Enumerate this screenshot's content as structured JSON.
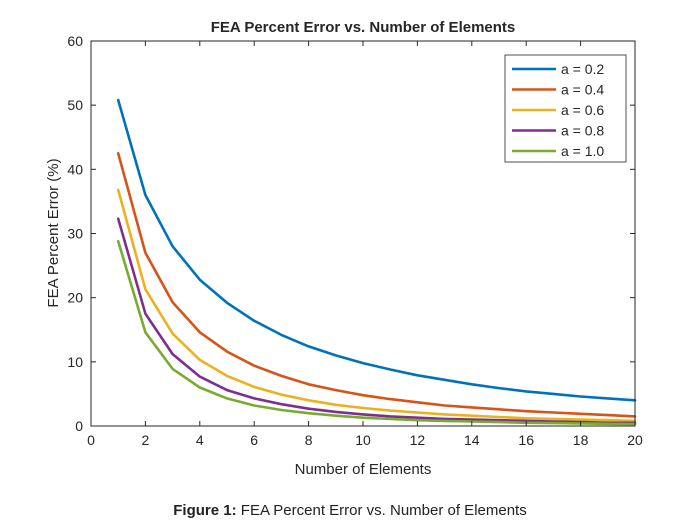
{
  "chart_data": {
    "type": "line",
    "title": "FEA Percent Error vs. Number of Elements",
    "xlabel": "Number of Elements",
    "ylabel": "FEA Percent Error (%)",
    "xlim": [
      0,
      20
    ],
    "ylim": [
      0,
      60
    ],
    "xticks": [
      0,
      2,
      4,
      6,
      8,
      10,
      12,
      14,
      16,
      18,
      20
    ],
    "yticks": [
      0,
      10,
      20,
      30,
      40,
      50,
      60
    ],
    "grid": false,
    "legend_position": "top-right",
    "x": [
      1,
      2,
      3,
      4,
      5,
      6,
      7,
      8,
      9,
      10,
      11,
      12,
      13,
      14,
      15,
      16,
      17,
      18,
      19,
      20
    ],
    "series": [
      {
        "name": "a = 0.2",
        "color": "#0072BD",
        "values": [
          50.8,
          36.0,
          28.0,
          22.8,
          19.2,
          16.4,
          14.2,
          12.4,
          11.0,
          9.8,
          8.8,
          7.9,
          7.2,
          6.5,
          5.9,
          5.4,
          5.0,
          4.6,
          4.3,
          4.0
        ]
      },
      {
        "name": "a = 0.4",
        "color": "#D95319",
        "values": [
          42.5,
          27.0,
          19.3,
          14.6,
          11.6,
          9.4,
          7.8,
          6.5,
          5.6,
          4.8,
          4.2,
          3.7,
          3.2,
          2.9,
          2.6,
          2.3,
          2.1,
          1.9,
          1.7,
          1.5
        ]
      },
      {
        "name": "a = 0.6",
        "color": "#EDB120",
        "values": [
          36.8,
          21.3,
          14.4,
          10.3,
          7.8,
          6.1,
          4.9,
          4.0,
          3.3,
          2.8,
          2.4,
          2.1,
          1.8,
          1.6,
          1.4,
          1.2,
          1.1,
          1.0,
          0.9,
          0.8
        ]
      },
      {
        "name": "a = 0.8",
        "color": "#7E2F8E",
        "values": [
          32.3,
          17.5,
          11.2,
          7.7,
          5.6,
          4.3,
          3.4,
          2.7,
          2.2,
          1.8,
          1.5,
          1.3,
          1.1,
          1.0,
          0.9,
          0.8,
          0.7,
          0.6,
          0.5,
          0.5
        ]
      },
      {
        "name": "a = 1.0",
        "color": "#77AC30",
        "values": [
          28.8,
          14.6,
          8.9,
          6.0,
          4.3,
          3.2,
          2.5,
          2.0,
          1.6,
          1.3,
          1.1,
          0.9,
          0.8,
          0.7,
          0.6,
          0.5,
          0.45,
          0.4,
          0.35,
          0.3
        ]
      }
    ]
  },
  "caption": {
    "label": "Figure 1:",
    "text": "FEA Percent Error vs. Number of Elements"
  }
}
